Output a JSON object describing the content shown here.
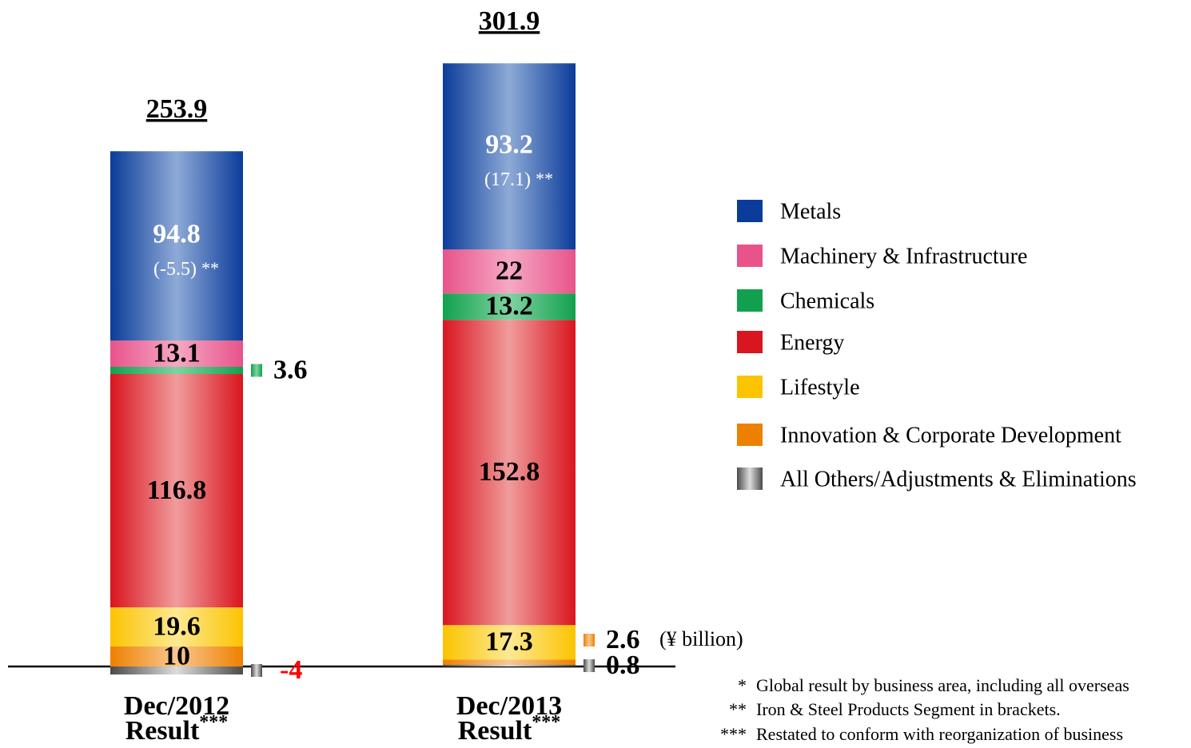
{
  "chart_data": {
    "type": "stacked_bar",
    "categories": [
      "Dec/2012",
      "Dec/2013"
    ],
    "category_sublabel": "Result",
    "category_note": "***",
    "totals": [
      253.9,
      301.9
    ],
    "unit_label": "(¥ billion)",
    "ylim": [
      -30,
      310
    ],
    "negative_label_color": "#ff0000",
    "series": [
      {
        "name": "Metals",
        "color": "#0b3c9a",
        "highlight": "#8eaad6",
        "label_color": "#ffffff",
        "values": [
          94.8,
          93.2
        ]
      },
      {
        "name": "Machinery & Infrastructure",
        "color": "#e8538a",
        "highlight": "#f5a8c4",
        "label_color": "#000000",
        "values": [
          13.1,
          22.0
        ]
      },
      {
        "name": "Chemicals",
        "color": "#11a14e",
        "highlight": "#80d2a0",
        "label_color": "#000000",
        "values": [
          3.6,
          13.2
        ]
      },
      {
        "name": "Energy",
        "color": "#d9151f",
        "highlight": "#f09c9c",
        "label_color": "#000000",
        "values": [
          116.8,
          152.8
        ]
      },
      {
        "name": "Lifestyle",
        "color": "#fcc300",
        "highlight": "#fde992",
        "label_color": "#000000",
        "values": [
          19.6,
          17.3
        ]
      },
      {
        "name": "Innovation & Corporate Development",
        "color": "#ee8000",
        "highlight": "#f8c890",
        "label_color": "#000000",
        "values": [
          10.0,
          2.6
        ]
      },
      {
        "name": "All Others/Adjustments & Eliminations",
        "color": "#4a4a4a",
        "highlight": "#dddddd",
        "label_color": "#000000",
        "values": [
          -4.0,
          0.8
        ]
      }
    ],
    "iron_steel": {
      "values": [
        -5.5,
        17.1
      ],
      "value_labels": [
        "(-5.5)",
        "(17.1)"
      ],
      "marker": "**"
    },
    "footnotes": [
      {
        "marker": "*",
        "text": "Global result by business area, including all overseas"
      },
      {
        "marker": "**",
        "text": "Iron & Steel Products Segment in brackets."
      },
      {
        "marker": "***",
        "text": "Restated to conform with reorganization of business"
      }
    ]
  }
}
